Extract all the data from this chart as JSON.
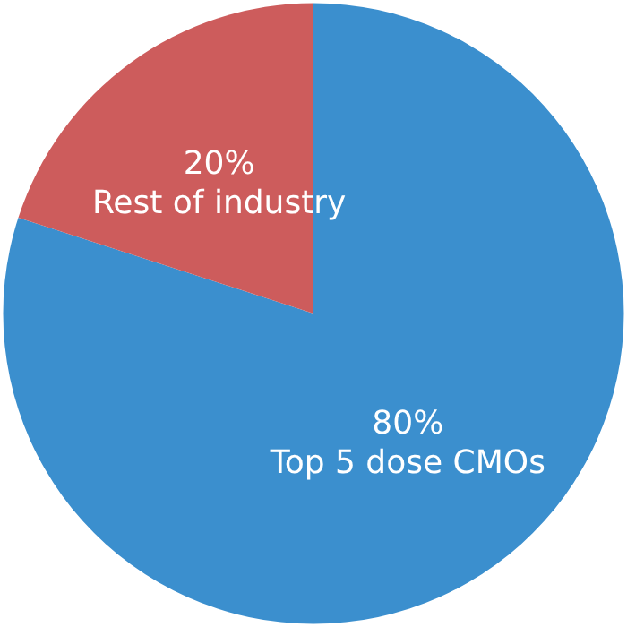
{
  "chart_data": {
    "type": "pie",
    "categories": [
      "Top 5 dose CMOs",
      "Rest of industry"
    ],
    "values": [
      80,
      20
    ],
    "colors": [
      "#3b8fce",
      "#cd5c5c"
    ],
    "value_labels": [
      "80%",
      "20%"
    ],
    "legend": false
  }
}
